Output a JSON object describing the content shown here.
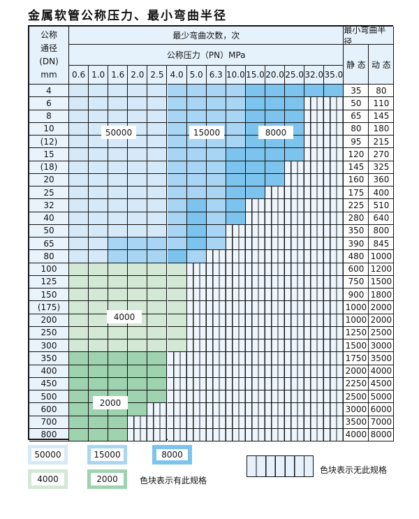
{
  "title": "金属软管公称压力、最小弯曲半径",
  "header": {
    "dn_label": [
      "公称",
      "通径",
      "(DN)",
      "mm"
    ],
    "cycles_label": "最少弯曲次数，次",
    "pressure_label": "公称压力（PN）MPa",
    "radius_label": "最小弯曲半径",
    "static_label": "静 态",
    "dynamic_label": "动 态",
    "pressures": [
      "0.6",
      "1.0",
      "1.6",
      "2.0",
      "2.5",
      "4.0",
      "5.0",
      "6.3",
      "10.0",
      "15.0",
      "20.0",
      "25.0",
      "32.0",
      "35.0"
    ]
  },
  "colors": {
    "L": "#d5e9f8",
    "M": "#a8d5f3",
    "D": "#7cc4ee",
    "G": "#d3e8d5",
    "H": "#9fd2ae"
  },
  "rows": [
    {
      "dn": "4",
      "static": "35",
      "dynamic": "80",
      "cells": "LLLLLMMMMDDDDD"
    },
    {
      "dn": "6",
      "static": "50",
      "dynamic": "110",
      "cells": "LLLLLMMMMDDD"
    },
    {
      "dn": "8",
      "static": "65",
      "dynamic": "145",
      "cells": "LLLLLMMMMDDD"
    },
    {
      "dn": "10",
      "static": "80",
      "dynamic": "180",
      "cells": "LLLLLMMMMDDD"
    },
    {
      "dn": "(12)",
      "static": "95",
      "dynamic": "215",
      "cells": "LLLLLMMMMDDD"
    },
    {
      "dn": "15",
      "static": "120",
      "dynamic": "270",
      "cells": "LLLLLMMMDDDD"
    },
    {
      "dn": "(18)",
      "static": "145",
      "dynamic": "325",
      "cells": "LLLLLMMMDDD"
    },
    {
      "dn": "20",
      "static": "160",
      "dynamic": "360",
      "cells": "LLLLLMMMDDD"
    },
    {
      "dn": "25",
      "static": "175",
      "dynamic": "400",
      "cells": "LLLLLMMMDD"
    },
    {
      "dn": "32",
      "static": "225",
      "dynamic": "510",
      "cells": "LLLLLMDMD"
    },
    {
      "dn": "40",
      "static": "280",
      "dynamic": "640",
      "cells": "LLLLLMDMD"
    },
    {
      "dn": "50",
      "static": "350",
      "dynamic": "800",
      "cells": "LLLLLMDM"
    },
    {
      "dn": "65",
      "static": "390",
      "dynamic": "845",
      "cells": "LLMMMMDM"
    },
    {
      "dn": "80",
      "static": "480",
      "dynamic": "1000",
      "cells": "LLMMMDM"
    },
    {
      "dn": "100",
      "static": "600",
      "dynamic": "1200",
      "cells": "GGGGGG"
    },
    {
      "dn": "125",
      "static": "750",
      "dynamic": "1500",
      "cells": "GGGGGG"
    },
    {
      "dn": "150",
      "static": "900",
      "dynamic": "1800",
      "cells": "GGGGGG"
    },
    {
      "dn": "(175)",
      "static": "1000",
      "dynamic": "2000",
      "cells": "GGGGGG"
    },
    {
      "dn": "200",
      "static": "1000",
      "dynamic": "2000",
      "cells": "GGGGGG"
    },
    {
      "dn": "250",
      "static": "1250",
      "dynamic": "2500",
      "cells": "GGGGGG"
    },
    {
      "dn": "300",
      "static": "1500",
      "dynamic": "3000",
      "cells": "GGGGGG"
    },
    {
      "dn": "350",
      "static": "1750",
      "dynamic": "3500",
      "cells": "HHHHH"
    },
    {
      "dn": "400",
      "static": "2000",
      "dynamic": "4000",
      "cells": "HHHHH"
    },
    {
      "dn": "450",
      "static": "2250",
      "dynamic": "4500",
      "cells": "HHHHH"
    },
    {
      "dn": "500",
      "static": "2500",
      "dynamic": "5000",
      "cells": "HHHHH"
    },
    {
      "dn": "600",
      "static": "3000",
      "dynamic": "6000",
      "cells": "HHHH"
    },
    {
      "dn": "700",
      "static": "3500",
      "dynamic": "7000",
      "cells": "HHH"
    },
    {
      "dn": "800",
      "static": "4000",
      "dynamic": "8000",
      "cells": "HHH"
    }
  ],
  "zone_labels": {
    "z50000": "50000",
    "z15000": "15000",
    "z8000": "8000",
    "z4000": "4000",
    "z2000": "2000"
  },
  "legend": {
    "l50000": "50000",
    "l15000": "15000",
    "l8000": "8000",
    "l4000": "4000",
    "l2000": "2000",
    "has_spec": "色块表示有此规格",
    "no_spec": "色块表示无此规格"
  }
}
